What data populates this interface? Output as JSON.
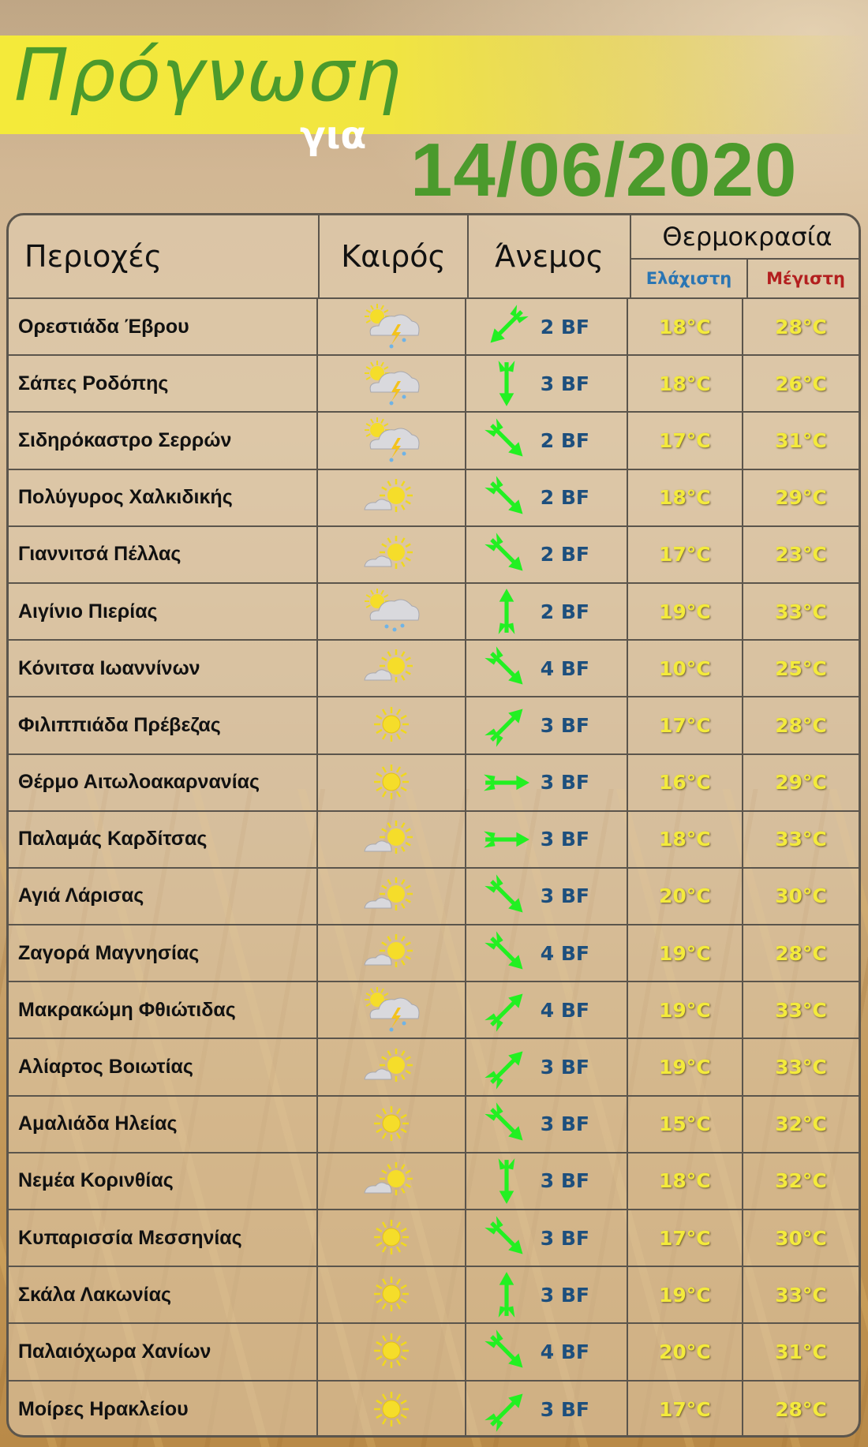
{
  "header": {
    "title": "Πρόγνωση",
    "subtitle": "για",
    "date": "14/06/2020"
  },
  "columns": {
    "region": "Περιοχές",
    "weather": "Καιρός",
    "wind": "Άνεμος",
    "temperature": "Θερμοκρασία",
    "min": "Ελάχιστη",
    "max": "Μέγιστη"
  },
  "colors": {
    "title_green": "#4b9a2c",
    "banner_yellow": "#f4ea3a",
    "wind_blue": "#1d4f7d",
    "temp_yellow": "#f3ea3c",
    "min_label": "#2a75b3",
    "max_label": "#b31f1f",
    "arrow_green": "#22f022"
  },
  "rows": [
    {
      "region": "Ορεστιάδα Έβρου",
      "weather": "thunderstorm-sun-icon",
      "wind_dir": "sw",
      "wind": "2 BF",
      "min": "18°C",
      "max": "28°C"
    },
    {
      "region": "Σάπες Ροδόπης",
      "weather": "thunderstorm-sun-icon",
      "wind_dir": "s",
      "wind": "3 BF",
      "min": "18°C",
      "max": "26°C"
    },
    {
      "region": "Σιδηρόκαστρο Σερρών",
      "weather": "thunderstorm-sun-icon",
      "wind_dir": "se",
      "wind": "2 BF",
      "min": "17°C",
      "max": "31°C"
    },
    {
      "region": "Πολύγυρος Χαλκιδικής",
      "weather": "sun-cloud-icon",
      "wind_dir": "se",
      "wind": "2 BF",
      "min": "18°C",
      "max": "29°C"
    },
    {
      "region": "Γιαννιτσά Πέλλας",
      "weather": "sun-cloud-icon",
      "wind_dir": "se",
      "wind": "2 BF",
      "min": "17°C",
      "max": "23°C"
    },
    {
      "region": "Αιγίνιο Πιερίας",
      "weather": "rain-cloud-icon",
      "wind_dir": "n",
      "wind": "2 BF",
      "min": "19°C",
      "max": "33°C"
    },
    {
      "region": "Κόνιτσα Ιωαννίνων",
      "weather": "sun-cloud-icon",
      "wind_dir": "se",
      "wind": "4 BF",
      "min": "10°C",
      "max": "25°C"
    },
    {
      "region": "Φιλιππιάδα Πρέβεζας",
      "weather": "sun-icon",
      "wind_dir": "ne",
      "wind": "3 BF",
      "min": "17°C",
      "max": "28°C"
    },
    {
      "region": "Θέρμο Αιτωλοακαρνανίας",
      "weather": "sun-icon",
      "wind_dir": "e",
      "wind": "3 BF",
      "min": "16°C",
      "max": "29°C"
    },
    {
      "region": "Παλαμάς Καρδίτσας",
      "weather": "sun-cloud-icon",
      "wind_dir": "e",
      "wind": "3 BF",
      "min": "18°C",
      "max": "33°C"
    },
    {
      "region": "Αγιά Λάρισας",
      "weather": "sun-cloud-icon",
      "wind_dir": "se",
      "wind": "3 BF",
      "min": "20°C",
      "max": "30°C"
    },
    {
      "region": "Ζαγορά Μαγνησίας",
      "weather": "sun-cloud-icon",
      "wind_dir": "se",
      "wind": "4 BF",
      "min": "19°C",
      "max": "28°C"
    },
    {
      "region": "Μακρακώμη Φθιώτιδας",
      "weather": "thunderstorm-sun-icon",
      "wind_dir": "ne",
      "wind": "4 BF",
      "min": "19°C",
      "max": "33°C"
    },
    {
      "region": "Αλίαρτος Βοιωτίας",
      "weather": "sun-cloud-icon",
      "wind_dir": "ne",
      "wind": "3 BF",
      "min": "19°C",
      "max": "33°C"
    },
    {
      "region": "Αμαλιάδα Ηλείας",
      "weather": "sun-icon",
      "wind_dir": "se",
      "wind": "3 BF",
      "min": "15°C",
      "max": "32°C"
    },
    {
      "region": "Νεμέα Κορινθίας",
      "weather": "sun-cloud-icon",
      "wind_dir": "s",
      "wind": "3 BF",
      "min": "18°C",
      "max": "32°C"
    },
    {
      "region": "Κυπαρισσία Μεσσηνίας",
      "weather": "sun-icon",
      "wind_dir": "se",
      "wind": "3 BF",
      "min": "17°C",
      "max": "30°C"
    },
    {
      "region": "Σκάλα Λακωνίας",
      "weather": "sun-icon",
      "wind_dir": "n",
      "wind": "3 BF",
      "min": "19°C",
      "max": "33°C"
    },
    {
      "region": "Παλαιόχωρα Χανίων",
      "weather": "sun-icon",
      "wind_dir": "se",
      "wind": "4 BF",
      "min": "20°C",
      "max": "31°C"
    },
    {
      "region": "Μοίρες Ηρακλείου",
      "weather": "sun-icon",
      "wind_dir": "ne",
      "wind": "3 BF",
      "min": "17°C",
      "max": "28°C"
    }
  ]
}
